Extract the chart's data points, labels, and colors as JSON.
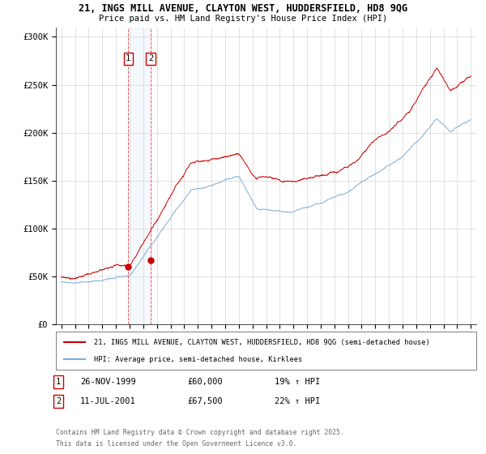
{
  "title_line1": "21, INGS MILL AVENUE, CLAYTON WEST, HUDDERSFIELD, HD8 9QG",
  "title_line2": "Price paid vs. HM Land Registry's House Price Index (HPI)",
  "red_label": "21, INGS MILL AVENUE, CLAYTON WEST, HUDDERSFIELD, HD8 9QG (semi-detached house)",
  "blue_label": "HPI: Average price, semi-detached house, Kirklees",
  "transaction1_date": "26-NOV-1999",
  "transaction1_price": "£60,000",
  "transaction1_hpi": "19% ↑ HPI",
  "transaction2_date": "11-JUL-2001",
  "transaction2_price": "£67,500",
  "transaction2_hpi": "22% ↑ HPI",
  "footnote1": "Contains HM Land Registry data © Crown copyright and database right 2025.",
  "footnote2": "This data is licensed under the Open Government Licence v3.0.",
  "ylim_min": 0,
  "ylim_max": 310000,
  "yticks": [
    0,
    50000,
    100000,
    150000,
    200000,
    250000,
    300000
  ],
  "ytick_labels": [
    "£0",
    "£50K",
    "£100K",
    "£150K",
    "£200K",
    "£250K",
    "£300K"
  ],
  "red_color": "#cc0000",
  "blue_color": "#7eadd4",
  "marker1_x": 1999.9,
  "marker1_y": 60000,
  "marker2_x": 2001.54,
  "marker2_y": 67500,
  "vline1_x": 1999.9,
  "vline2_x": 2001.54,
  "bg_color": "#ffffff",
  "grid_color": "#cccccc",
  "xlim_min": 1994.6,
  "xlim_max": 2025.4
}
